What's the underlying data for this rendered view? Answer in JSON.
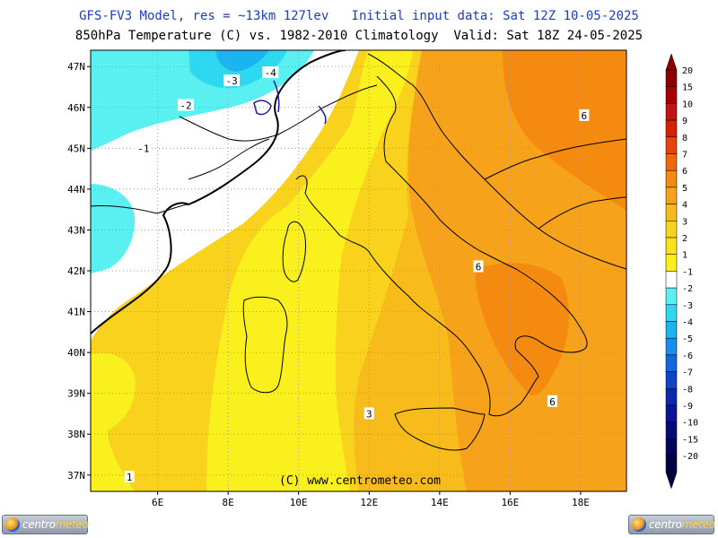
{
  "header": {
    "line1": "GFS-FV3 Model, res = ~13km 127lev   Initial input data: Sat 12Z 10-05-2025",
    "line2": "850hPa Temperature (C) vs. 1982-2010 Climatology  Valid: Sat 18Z 24-05-2025"
  },
  "map": {
    "lat_labels": [
      "47N",
      "46N",
      "45N",
      "44N",
      "43N",
      "42N",
      "41N",
      "40N",
      "39N",
      "38N",
      "37N"
    ],
    "lon_labels": [
      "6E",
      "8E",
      "10E",
      "12E",
      "14E",
      "16E",
      "18E"
    ],
    "lat_range": [
      36.6,
      47.4
    ],
    "lon_range": [
      4.1,
      19.3
    ],
    "contour_labels": [
      {
        "text": "-4",
        "lon": 9.2,
        "lat": 46.85
      },
      {
        "text": "-3",
        "lon": 8.1,
        "lat": 46.65
      },
      {
        "text": "-2",
        "lon": 6.8,
        "lat": 46.05
      },
      {
        "text": "-1",
        "lon": 5.6,
        "lat": 45.0
      },
      {
        "text": "6",
        "lon": 18.1,
        "lat": 45.8
      },
      {
        "text": "6",
        "lon": 15.1,
        "lat": 42.1
      },
      {
        "text": "6",
        "lon": 17.2,
        "lat": 38.8
      },
      {
        "text": "3",
        "lon": 12.0,
        "lat": 38.5
      },
      {
        "text": "1",
        "lon": 5.2,
        "lat": 36.95
      }
    ],
    "credit": "(C) www.centrometeo.com"
  },
  "legend": {
    "labels": [
      "20",
      "15",
      "10",
      "9",
      "8",
      "7",
      "6",
      "5",
      "4",
      "3",
      "2",
      "1",
      "-1",
      "-2",
      "-3",
      "-4",
      "-5",
      "-6",
      "-7",
      "-8",
      "-9",
      "-10",
      "-15",
      "-20"
    ],
    "colors": [
      "#8b0000",
      "#a60000",
      "#c21414",
      "#d72200",
      "#e8440a",
      "#f2650c",
      "#f58a10",
      "#f6a21a",
      "#f7bb1c",
      "#f8d21c",
      "#f9e11c",
      "#faf01e",
      "#ffffff",
      "#5af0f2",
      "#2ed8f0",
      "#1cb4f0",
      "#168ef0",
      "#1266e0",
      "#0e44c8",
      "#0a28b0",
      "#081696",
      "#050a78",
      "#03045c",
      "#010240"
    ]
  },
  "logos": {
    "left_a": "centro",
    "left_b": "meteo",
    "right_a": "centro",
    "right_b": "meteo"
  }
}
